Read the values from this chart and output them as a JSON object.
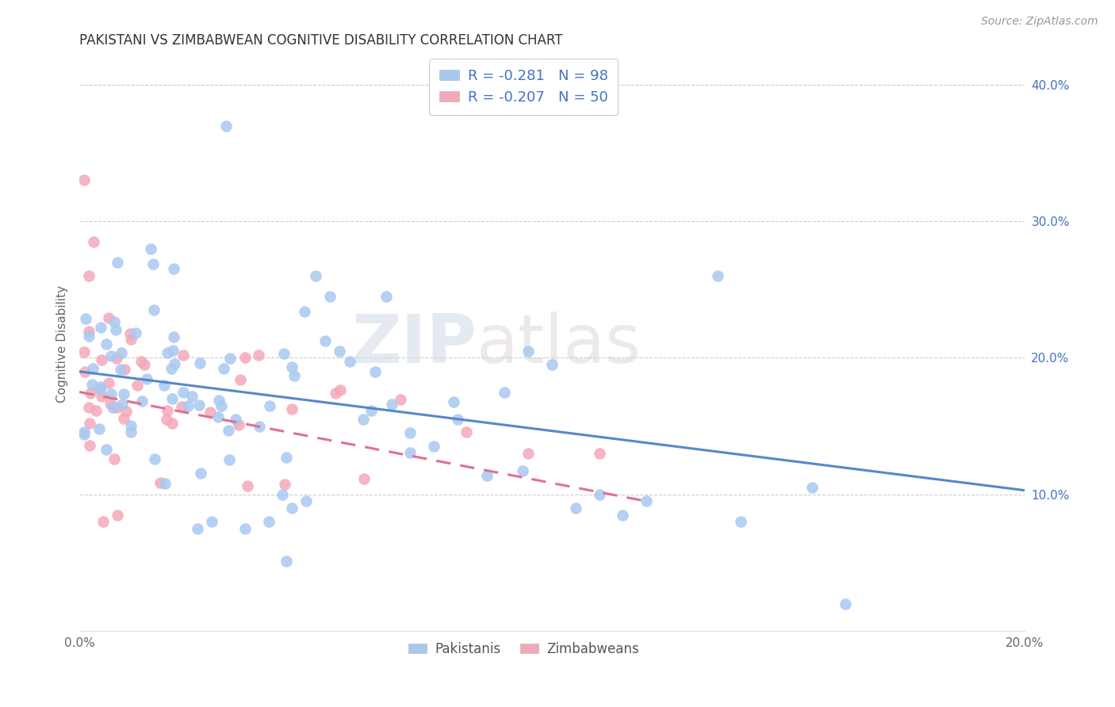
{
  "title": "PAKISTANI VS ZIMBABWEAN COGNITIVE DISABILITY CORRELATION CHART",
  "source": "Source: ZipAtlas.com",
  "ylabel": "Cognitive Disability",
  "legend_blue_label": "R = -0.281   N = 98",
  "legend_pink_label": "R = -0.207   N = 50",
  "legend_r_blue": "-0.281",
  "legend_n_blue": "98",
  "legend_r_pink": "-0.207",
  "legend_n_pink": "50",
  "blue_color": "#A8C8F0",
  "pink_color": "#F5A8B8",
  "blue_line_color": "#5588CC",
  "pink_line_color": "#E07090",
  "watermark1": "ZIP",
  "watermark2": "atlas",
  "title_fontsize": 12,
  "source_fontsize": 10
}
